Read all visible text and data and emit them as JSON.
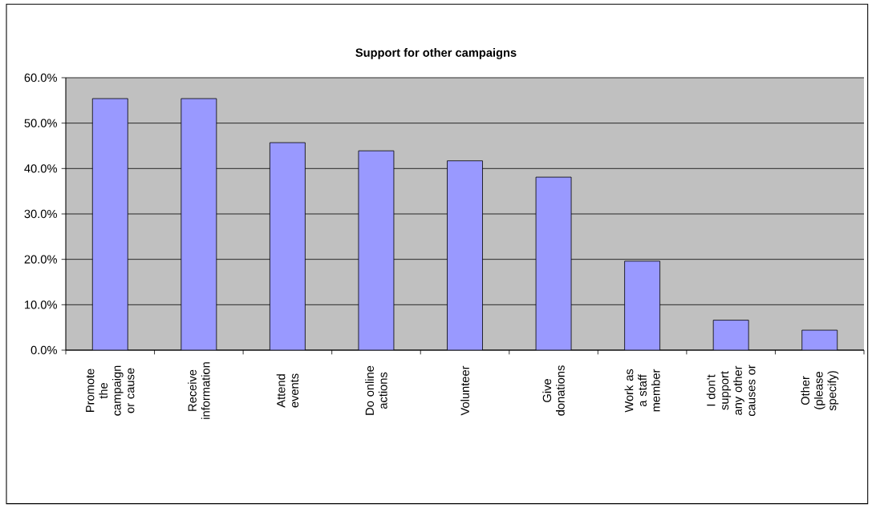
{
  "chart_data": {
    "type": "bar",
    "title": "Support for other campaigns",
    "categories": [
      "Promote the campaign or cause",
      "Receive information",
      "Attend events",
      "Do online actions",
      "Volunteer",
      "Give donations",
      "Work as a staff member",
      "I don't support any other causes or",
      "Other (please specify)"
    ],
    "values": [
      55.4,
      55.4,
      45.7,
      43.9,
      41.7,
      38.1,
      19.6,
      6.6,
      4.4
    ],
    "color": "#9999ff",
    "ylim": [
      0,
      60
    ],
    "yticks": [
      {
        "value": 0,
        "label": "0.0%"
      },
      {
        "value": 10,
        "label": "10.0%"
      },
      {
        "value": 20,
        "label": "20.0%"
      },
      {
        "value": 30,
        "label": "30.0%"
      },
      {
        "value": 40,
        "label": "40.0%"
      },
      {
        "value": 50,
        "label": "50.0%"
      },
      {
        "value": 60,
        "label": "60.0%"
      }
    ],
    "grid": "y"
  }
}
